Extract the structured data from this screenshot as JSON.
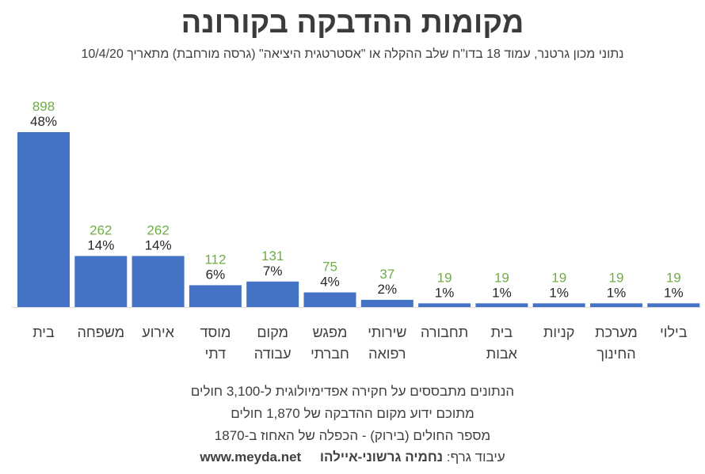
{
  "title": "מקומות ההדבקה בקורונה",
  "subtitle": "נתוני מכון גרטנר, עמוד 18 בדו\"ח שלב ההקלה או \"אסטרטגית היציאה\" (גרסה מורחבת) מתאריך 10/4/20",
  "chart_data": {
    "type": "bar",
    "categories": [
      [
        "בית"
      ],
      [
        "משפחה"
      ],
      [
        "אירוע"
      ],
      [
        "מוסד",
        "דתי"
      ],
      [
        "מקום",
        "עבודה"
      ],
      [
        "מפגש",
        "חברתי"
      ],
      [
        "שירותי",
        "רפואה"
      ],
      [
        "תחבורה"
      ],
      [
        "בית",
        "אבות"
      ],
      [
        "קניות"
      ],
      [
        "מערכת",
        "החינוך"
      ],
      [
        "בילוי"
      ]
    ],
    "values": [
      898,
      262,
      262,
      112,
      131,
      75,
      37,
      19,
      19,
      19,
      19,
      19
    ],
    "percent_labels": [
      "48%",
      "14%",
      "14%",
      "6%",
      "7%",
      "4%",
      "2%",
      "1%",
      "1%",
      "1%",
      "1%",
      "1%"
    ],
    "bar_color": "#4472C4",
    "value_label_color": "#70AD47",
    "grid": false,
    "legend": "none"
  },
  "footer": {
    "line1": "הנתונים מתבססים על חקירה אפדימיולוגית ל-3,100 חולים",
    "line2": "מתוכם ידוע מקום ההדבקה של 1,870 חולים",
    "line3": "מספר החולים (בירוק) - הכפלה של האחוז ב-1870",
    "credit_label": "עיבוד גרף:",
    "credit_name": "נחמיה גרשוני-איילהו",
    "website": "www.meyda.net"
  }
}
